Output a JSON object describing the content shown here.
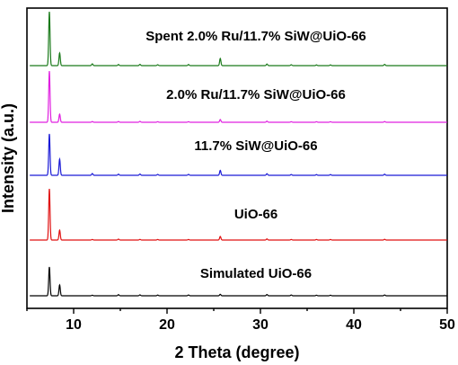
{
  "chart_data": {
    "type": "line",
    "title": "",
    "xlabel": "2 Theta (degree)",
    "ylabel": "Intensity (a.u.)",
    "xlim": [
      5,
      50
    ],
    "x_ticks": [
      10,
      20,
      30,
      40,
      50
    ],
    "y_ticks_shown": false,
    "grid": false,
    "legend": "none",
    "peaks_2theta": [
      7.4,
      8.5,
      12.0,
      14.8,
      17.1,
      19.0,
      22.3,
      25.7,
      30.7,
      33.3,
      36.0,
      37.5,
      43.3
    ],
    "series": [
      {
        "name": "Simulated UiO-66",
        "color": "#000000",
        "baseline": 0,
        "peaks": [
          [
            7.4,
            32
          ],
          [
            8.5,
            12
          ],
          [
            12.0,
            0.6
          ],
          [
            14.8,
            1.2
          ],
          [
            17.1,
            1.0
          ],
          [
            19.0,
            0.8
          ],
          [
            22.3,
            0.9
          ],
          [
            25.7,
            1.6
          ],
          [
            30.7,
            1.4
          ],
          [
            33.3,
            0.9
          ],
          [
            36.0,
            0.6
          ],
          [
            37.5,
            0.6
          ],
          [
            43.3,
            0.9
          ]
        ]
      },
      {
        "name": "UiO-66",
        "color": "#e01010",
        "baseline": 62,
        "peaks": [
          [
            7.4,
            57
          ],
          [
            8.5,
            11
          ],
          [
            12.0,
            0.6
          ],
          [
            14.8,
            1.0
          ],
          [
            17.1,
            0.7
          ],
          [
            19.0,
            0.6
          ],
          [
            22.3,
            0.6
          ],
          [
            25.7,
            4.0
          ],
          [
            30.7,
            1.2
          ],
          [
            33.3,
            0.6
          ],
          [
            36.0,
            0.6
          ],
          [
            37.5,
            0.6
          ],
          [
            43.3,
            0.8
          ]
        ]
      },
      {
        "name": "11.7% SiW@UiO-66",
        "color": "#1a1ad6",
        "baseline": 134,
        "peaks": [
          [
            7.4,
            46
          ],
          [
            8.5,
            18
          ],
          [
            12.0,
            2.0
          ],
          [
            14.8,
            1.2
          ],
          [
            17.1,
            1.4
          ],
          [
            19.0,
            1.0
          ],
          [
            22.3,
            1.0
          ],
          [
            25.7,
            5.5
          ],
          [
            30.7,
            1.8
          ],
          [
            33.3,
            0.9
          ],
          [
            36.0,
            0.8
          ],
          [
            37.5,
            0.8
          ],
          [
            43.3,
            1.2
          ]
        ]
      },
      {
        "name": "2.0% Ru/11.7% SiW@UiO-66",
        "color": "#e020e0",
        "baseline": 193,
        "peaks": [
          [
            7.4,
            57
          ],
          [
            8.5,
            9
          ],
          [
            12.0,
            0.8
          ],
          [
            14.8,
            0.8
          ],
          [
            17.1,
            1.0
          ],
          [
            19.0,
            0.6
          ],
          [
            22.3,
            0.6
          ],
          [
            25.7,
            3.0
          ],
          [
            30.7,
            1.2
          ],
          [
            33.3,
            0.6
          ],
          [
            36.0,
            0.6
          ],
          [
            37.5,
            0.6
          ],
          [
            43.3,
            0.8
          ]
        ]
      },
      {
        "name": "Spent 2.0% Ru/11.7% SiW@UiO-66",
        "color": "#1a7a1a",
        "baseline": 256,
        "peaks": [
          [
            7.4,
            60
          ],
          [
            8.5,
            14
          ],
          [
            12.0,
            2.0
          ],
          [
            14.8,
            1.2
          ],
          [
            17.1,
            1.4
          ],
          [
            19.0,
            1.0
          ],
          [
            22.3,
            1.2
          ],
          [
            25.7,
            8.0
          ],
          [
            30.7,
            1.8
          ],
          [
            33.3,
            1.0
          ],
          [
            36.0,
            0.8
          ],
          [
            37.5,
            0.8
          ],
          [
            43.3,
            1.4
          ]
        ]
      }
    ]
  }
}
